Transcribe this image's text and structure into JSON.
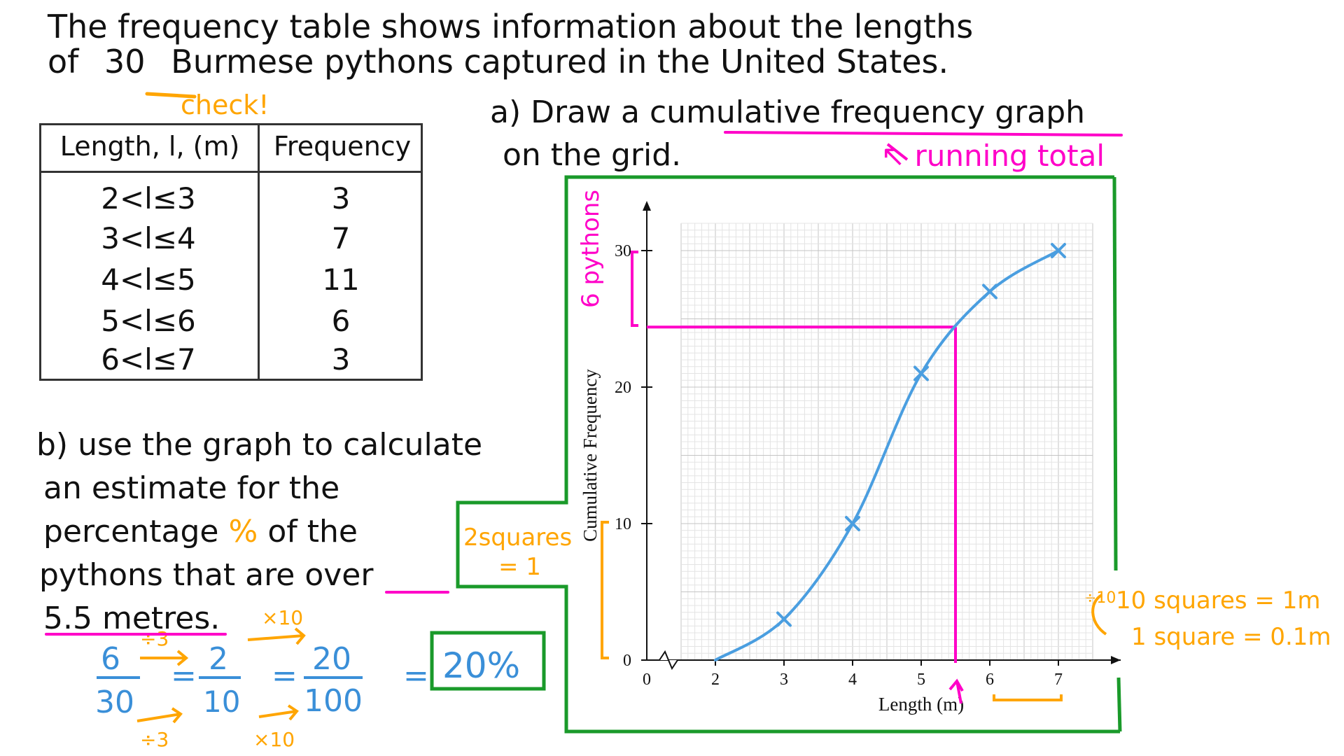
{
  "intro": {
    "line1": "The frequency table shows information about the lengths",
    "line2_prefix": "of",
    "line2_number": "30",
    "line2_rest": "Burmese pythons captured in the United States.",
    "check_note": "check!"
  },
  "question_a": {
    "line1_prefix": "a) Draw a",
    "line1_highlight": "cumulative frequency",
    "line1_suffix": "graph",
    "line2": "on the grid.",
    "running_total_note": "↖ running total"
  },
  "table": {
    "headers": [
      "Length, l, (m)",
      "Frequency"
    ],
    "rows": [
      {
        "length": "2<l≤3",
        "frequency": "3"
      },
      {
        "length": "3<l≤4",
        "frequency": "7"
      },
      {
        "length": "4<l≤5",
        "frequency": "11"
      },
      {
        "length": "5<l≤6",
        "frequency": "6"
      },
      {
        "length": "6<l≤7",
        "frequency": "3"
      }
    ]
  },
  "question_b": {
    "line1": "b) use the graph to calculate",
    "line2": "an estimate for the",
    "line3_prefix": "percentage",
    "line3_percent": "%",
    "line3_suffix": "of the",
    "line4_prefix": "pythons that are",
    "line4_highlight": "over",
    "line5": "5.5 metres."
  },
  "working": {
    "frac1_num": "6",
    "frac1_den": "30",
    "frac2_num": "2",
    "frac2_den": "10",
    "frac3_num": "20",
    "frac3_den": "100",
    "eq": "=",
    "answer": "20%",
    "div3": "÷3",
    "times10": "×10"
  },
  "annotations": {
    "six_pythons": "6 pythons",
    "two_squares": "2squares",
    "two_squares_eq": "= 1",
    "ten_squares": "10 squares = 1m",
    "one_square": "1 square = 0.1m",
    "div10": "÷10"
  },
  "colors": {
    "curve": "#4a9ee0",
    "pink": "#ff00c8",
    "orange": "#ffa500",
    "green": "#1a9a2a",
    "blue_working": "#3a8fd8",
    "grid_minor": "#e4e4e4",
    "grid_major": "#c4c4c4"
  },
  "chart_data": {
    "type": "line",
    "xlabel": "Length (m)",
    "ylabel": "Cumulative Frequency",
    "x_ticks": [
      "0",
      "2",
      "3",
      "4",
      "5",
      "6",
      "7"
    ],
    "y_ticks": [
      "0",
      "10",
      "20",
      "30"
    ],
    "xlim": [
      1.5,
      7.5
    ],
    "ylim": [
      0,
      35
    ],
    "x_axis_break": true,
    "grid": true,
    "series": [
      {
        "x": [
          2,
          3,
          4,
          5,
          6,
          7
        ],
        "y": [
          0,
          3,
          10,
          21,
          27,
          30
        ],
        "markers": [
          3,
          4,
          5,
          6,
          7
        ]
      }
    ],
    "reading_line": {
      "x": 5.5,
      "y": 24.4
    }
  }
}
